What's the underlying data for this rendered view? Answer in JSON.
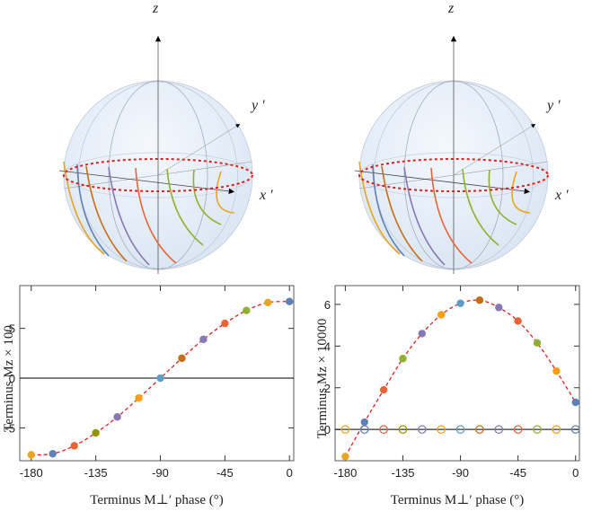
{
  "spheres": [
    {
      "labels": {
        "z": "z",
        "y": "y '",
        "x": "x '"
      }
    },
    {
      "labels": {
        "z": "z",
        "y": "y '",
        "x": "x '"
      }
    }
  ],
  "chart_data": [
    {
      "type": "scatter",
      "x_label": "Terminus M⊥′ phase (°)",
      "y_label": "Terminus Mz × 100",
      "x": [
        -180,
        -165,
        -150,
        -135,
        -120,
        -105,
        -90,
        -75,
        -60,
        -45,
        -30,
        -15,
        0
      ],
      "series": [
        {
          "values": [
            -7.7,
            -7.6,
            -6.8,
            -5.5,
            -3.9,
            -2.0,
            0,
            2.0,
            3.9,
            5.5,
            6.8,
            7.6,
            7.7
          ],
          "marker": "filled",
          "colors": [
            "#e8a521",
            "#5e81b5",
            "#eb6235",
            "#929600",
            "#8778b3",
            "#f89f13",
            "#5d9ec7",
            "#c56e1a",
            "#8778b3",
            "#eb6235",
            "#8fb032",
            "#e8a521",
            "#5e81b5"
          ]
        }
      ],
      "fit_line": {
        "color": "#e02020",
        "dashed": true
      },
      "zero_line": true,
      "xlim": [
        -188,
        3
      ],
      "ylim": [
        -8.3,
        9.3
      ],
      "xticks": [
        -180,
        -135,
        -90,
        -45,
        0
      ],
      "yticks": [
        -5,
        0,
        5
      ]
    },
    {
      "type": "scatter",
      "x_label": "Terminus M⊥′ phase (°)",
      "y_label": "Terminus Mz × 10000",
      "x": [
        -180,
        -165,
        -150,
        -135,
        -120,
        -105,
        -90,
        -75,
        -60,
        -45,
        -30,
        -15,
        0
      ],
      "series": [
        {
          "values": [
            -1.3,
            0.35,
            1.9,
            3.4,
            4.6,
            5.5,
            6.05,
            6.2,
            5.85,
            5.2,
            4.15,
            2.8,
            1.3
          ],
          "marker": "filled",
          "colors": [
            "#e8a521",
            "#5e81b5",
            "#eb6235",
            "#8fb032",
            "#8778b3",
            "#f89f13",
            "#5d9ec7",
            "#c56e1a",
            "#8778b3",
            "#eb6235",
            "#8fb032",
            "#f89f13",
            "#5e81b5"
          ]
        },
        {
          "values": [
            0,
            0,
            0,
            0,
            0,
            0,
            0,
            0,
            0,
            0,
            0,
            0,
            0
          ],
          "marker": "hollow",
          "colors": [
            "#e8a521",
            "#5e81b5",
            "#eb6235",
            "#929600",
            "#8778b3",
            "#f89f13",
            "#5d9ec7",
            "#c56e1a",
            "#8778b3",
            "#eb6235",
            "#8fb032",
            "#f89f13",
            "#5e81b5"
          ]
        }
      ],
      "fit_line": {
        "color": "#e02020",
        "dashed": true
      },
      "zero_line": true,
      "xlim": [
        -188,
        3
      ],
      "ylim": [
        -1.5,
        6.9
      ],
      "xticks": [
        -180,
        -135,
        -90,
        -45,
        0
      ],
      "yticks": [
        0,
        2,
        4,
        6
      ]
    }
  ]
}
